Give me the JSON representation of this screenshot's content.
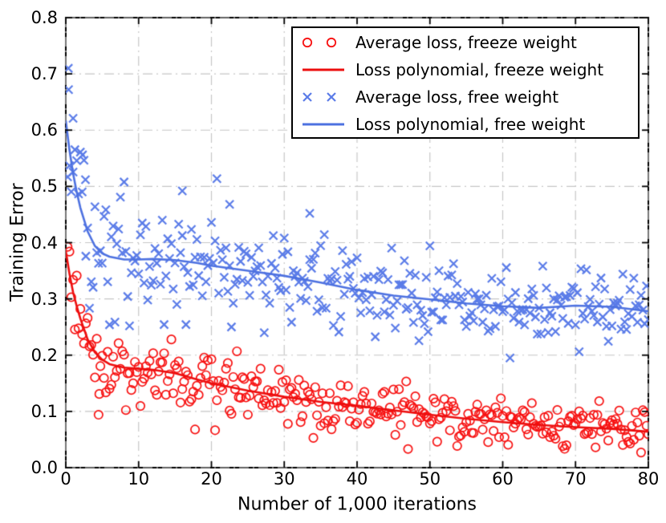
{
  "chart_data": {
    "type": "scatter",
    "title": "",
    "xlabel": "Number of 1,000 iterations",
    "ylabel": "Training Error",
    "xlim": [
      0,
      80
    ],
    "ylim": [
      0.0,
      0.8
    ],
    "xticks": [
      0,
      10,
      20,
      30,
      40,
      50,
      60,
      70,
      80
    ],
    "xtick_labels": [
      "0",
      "10",
      "20",
      "30",
      "40",
      "50",
      "60",
      "70",
      "80"
    ],
    "yticks": [
      0.0,
      0.1,
      0.2,
      0.3,
      0.4,
      0.5,
      0.6,
      0.7,
      0.8
    ],
    "ytick_labels": [
      "0.0",
      "0.1",
      "0.2",
      "0.3",
      "0.4",
      "0.5",
      "0.6",
      "0.7",
      "0.8"
    ],
    "grid": {
      "show": true,
      "linestyle": "dash-dot",
      "color": "#c6c6c6",
      "width": 1.2,
      "dash": [
        12,
        5,
        2,
        5
      ]
    },
    "frame_color": "#000000",
    "legend": {
      "position": "upper-right",
      "border_color": "#000000",
      "background": "#ffffff"
    },
    "series": [
      {
        "label": "Average loss, freeze weight",
        "type": "scatter",
        "marker": "circle",
        "color": "#f71111",
        "trend_from": 1,
        "count": 320,
        "x_step": 0.25,
        "noise_sigma": 0.027,
        "seed": 3,
        "extra_points": [
          [
            4.6,
            0.131
          ]
        ]
      },
      {
        "label": "Loss polynomial, freeze weight",
        "type": "line",
        "color": "#ec0e0e",
        "x": [
          0,
          0.5,
          1,
          1.5,
          2,
          3,
          4,
          5,
          6,
          8,
          10,
          12,
          15,
          18,
          20,
          25,
          30,
          35,
          40,
          45,
          50,
          55,
          60,
          65,
          70,
          75,
          80
        ],
        "y": [
          0.385,
          0.345,
          0.312,
          0.287,
          0.265,
          0.228,
          0.205,
          0.192,
          0.184,
          0.178,
          0.176,
          0.174,
          0.168,
          0.157,
          0.15,
          0.137,
          0.126,
          0.117,
          0.11,
          0.102,
          0.094,
          0.087,
          0.081,
          0.076,
          0.072,
          0.069,
          0.064
        ]
      },
      {
        "label": "Average loss, free weight",
        "type": "scatter",
        "marker": "x",
        "color": "#5b7ce8",
        "trend_from": 3,
        "count": 320,
        "x_step": 0.25,
        "noise_sigma": 0.042,
        "seed": 8,
        "extra_points": [
          [
            0.35,
            0.71
          ],
          [
            0.38,
            0.672
          ],
          [
            1.0,
            0.621
          ],
          [
            2.3,
            0.556
          ],
          [
            2.7,
            0.512
          ],
          [
            16.0,
            0.492
          ],
          [
            22.5,
            0.468
          ],
          [
            33.5,
            0.452
          ]
        ]
      },
      {
        "label": "Loss polynomial, free weight",
        "type": "line",
        "color": "#4d71e0",
        "x": [
          0,
          0.5,
          1,
          1.5,
          2,
          3,
          4,
          5,
          6,
          8,
          10,
          12,
          15,
          18,
          20,
          25,
          30,
          35,
          40,
          45,
          50,
          55,
          60,
          65,
          70,
          75,
          80
        ],
        "y": [
          0.617,
          0.565,
          0.523,
          0.49,
          0.462,
          0.42,
          0.394,
          0.381,
          0.375,
          0.37,
          0.37,
          0.371,
          0.369,
          0.364,
          0.359,
          0.35,
          0.341,
          0.329,
          0.316,
          0.306,
          0.299,
          0.292,
          0.287,
          0.284,
          0.288,
          0.286,
          0.278
        ]
      }
    ]
  }
}
